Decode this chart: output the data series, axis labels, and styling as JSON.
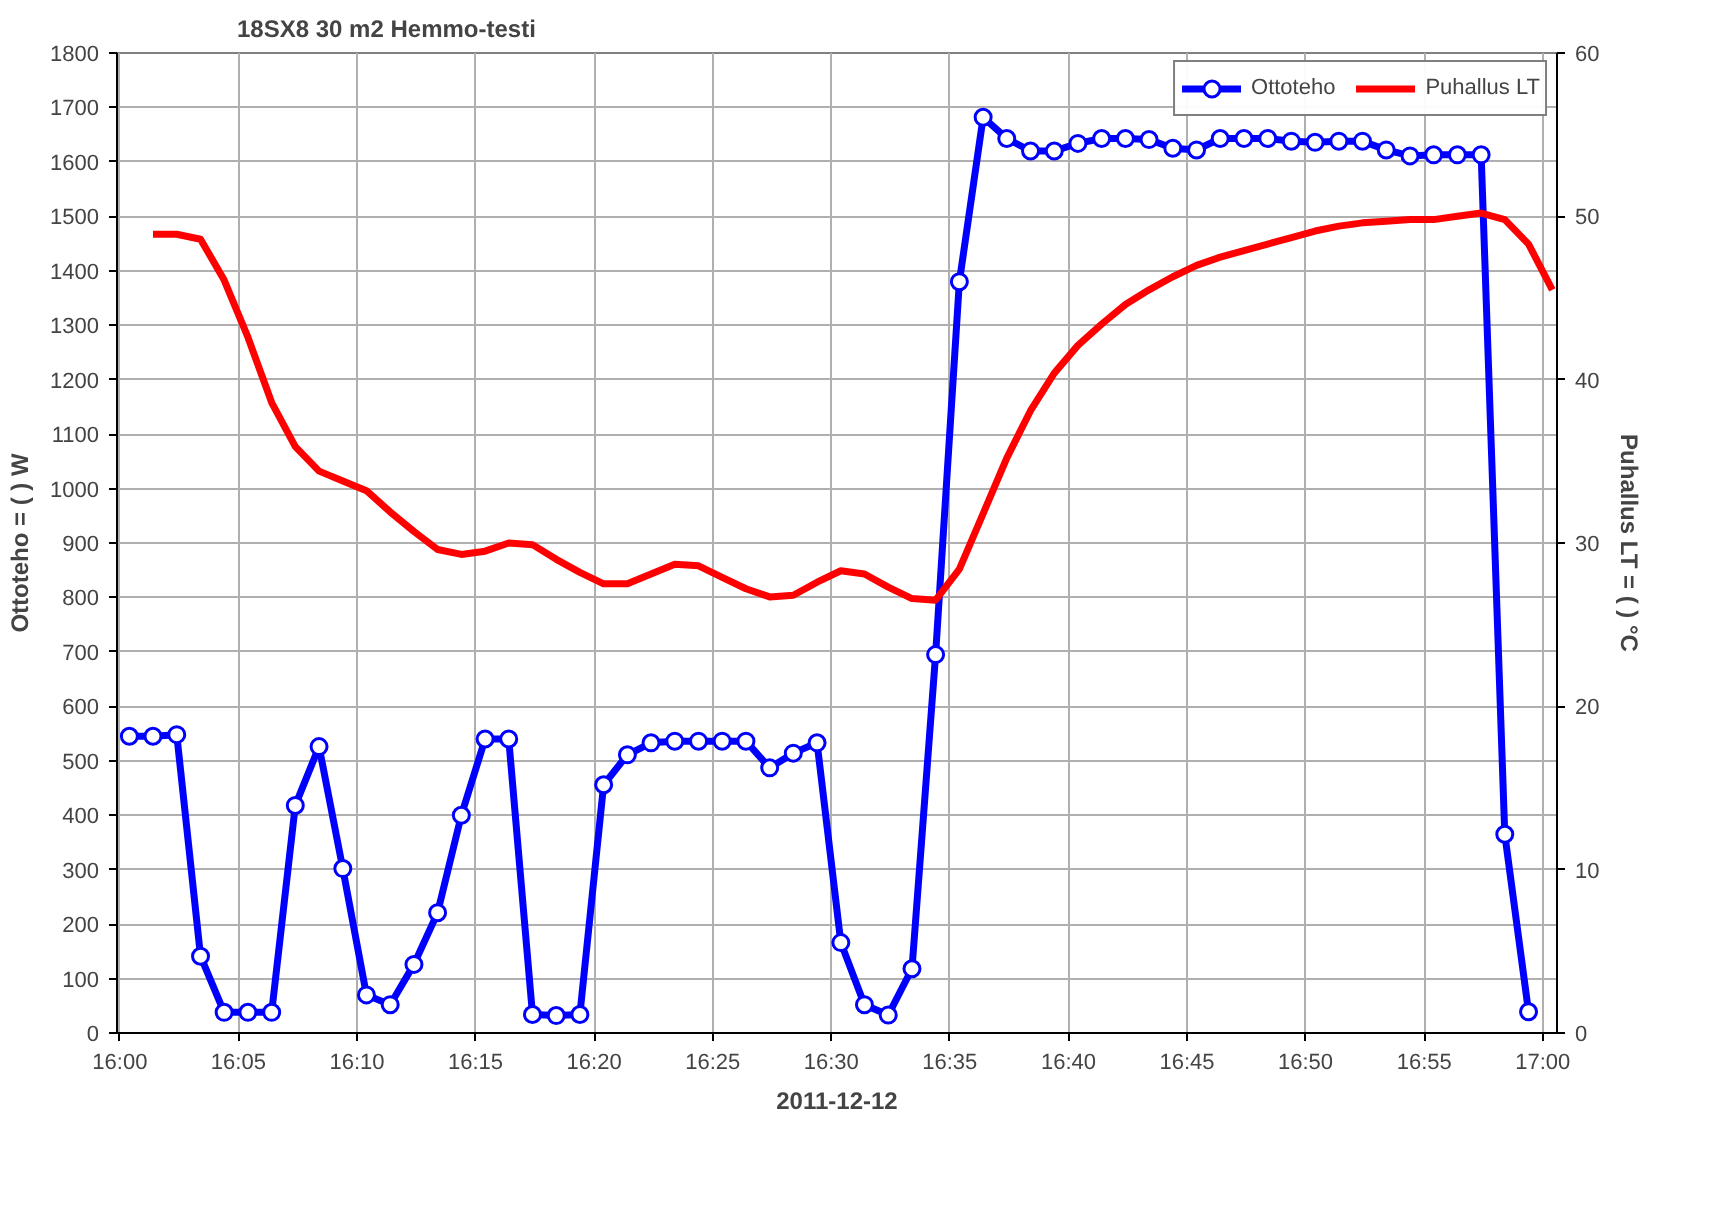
{
  "chart_data": {
    "type": "line",
    "title": "18SX8 30 m2 Hemmo-testi",
    "xlabel": "2011-12-12",
    "ylabel": "Ottoteho = ( ) W",
    "y2label": "Puhallus LT = ( ) °C",
    "xlim": [
      15.998,
      17.01
    ],
    "xticks": [
      {
        "value": 16,
        "label": "16:00"
      },
      {
        "value": 16.0833,
        "label": "16:05"
      },
      {
        "value": 16.1667,
        "label": "16:10"
      },
      {
        "value": 16.25,
        "label": "16:15"
      },
      {
        "value": 16.3333,
        "label": "16:20"
      },
      {
        "value": 16.4167,
        "label": "16:25"
      },
      {
        "value": 16.5,
        "label": "16:30"
      },
      {
        "value": 16.5833,
        "label": "16:35"
      },
      {
        "value": 16.6667,
        "label": "16:40"
      },
      {
        "value": 16.75,
        "label": "16:45"
      },
      {
        "value": 16.8333,
        "label": "16:50"
      },
      {
        "value": 16.9167,
        "label": "16:55"
      },
      {
        "value": 17,
        "label": "17:00"
      }
    ],
    "ylim": [
      0,
      1800
    ],
    "yticks": [
      0,
      100,
      200,
      300,
      400,
      500,
      600,
      700,
      800,
      900,
      1000,
      1100,
      1200,
      1300,
      1400,
      1500,
      1600,
      1700,
      1800
    ],
    "y2lim": [
      0,
      60
    ],
    "y2ticks": [
      0,
      10,
      20,
      30,
      40,
      50,
      60
    ],
    "grid": true,
    "legend": "top right",
    "series": [
      {
        "name": "Ottoteho",
        "color": "#0000ff",
        "marker": "circle",
        "x": [
          16.0067,
          16.0233,
          16.04,
          16.0567,
          16.0733,
          16.09,
          16.1067,
          16.1233,
          16.14,
          16.1567,
          16.1733,
          16.19,
          16.2067,
          16.2233,
          16.24,
          16.2567,
          16.2733,
          16.29,
          16.3067,
          16.3233,
          16.34,
          16.3567,
          16.3733,
          16.39,
          16.4067,
          16.4233,
          16.44,
          16.4567,
          16.4733,
          16.49,
          16.5067,
          16.5233,
          16.54,
          16.5567,
          16.5733,
          16.59,
          16.6067,
          16.6233,
          16.64,
          16.6567,
          16.6733,
          16.69,
          16.7067,
          16.7233,
          16.74,
          16.7567,
          16.7733,
          16.79,
          16.8067,
          16.8233,
          16.84,
          16.8567,
          16.8733,
          16.89,
          16.9067,
          16.9233,
          16.94,
          16.9567,
          16.9733,
          16.99
        ],
        "values": [
          545,
          545,
          548,
          141,
          38,
          38,
          38,
          418,
          526,
          302,
          70,
          52,
          126,
          221,
          400,
          540,
          540,
          34,
          32,
          34,
          456,
          511,
          533,
          536,
          536,
          536,
          536,
          487,
          514,
          533,
          166,
          52,
          33,
          118,
          695,
          1380,
          1682,
          1643,
          1620,
          1620,
          1634,
          1643,
          1643,
          1641,
          1625,
          1622,
          1643,
          1643,
          1643,
          1638,
          1636,
          1638,
          1638,
          1622,
          1611,
          1613,
          1613,
          1613,
          365,
          39
        ]
      },
      {
        "name": "Puhallus LT",
        "color": "#ff0000",
        "marker": "none",
        "axis": "y2",
        "x": [
          16.0233,
          16.04,
          16.0567,
          16.0733,
          16.09,
          16.1067,
          16.1233,
          16.14,
          16.1567,
          16.1733,
          16.19,
          16.2067,
          16.2233,
          16.24,
          16.2567,
          16.2733,
          16.29,
          16.3067,
          16.3233,
          16.34,
          16.3567,
          16.3733,
          16.39,
          16.4067,
          16.4233,
          16.44,
          16.4567,
          16.4733,
          16.49,
          16.5067,
          16.5233,
          16.54,
          16.5567,
          16.5733,
          16.59,
          16.6067,
          16.6233,
          16.64,
          16.6567,
          16.6733,
          16.69,
          16.7067,
          16.7233,
          16.74,
          16.7567,
          16.7733,
          16.79,
          16.8067,
          16.8233,
          16.84,
          16.8567,
          16.8733,
          16.89,
          16.9067,
          16.9233,
          16.94,
          16.9567,
          16.9733,
          16.99,
          17.0067
        ],
        "values": [
          48.9,
          48.9,
          48.6,
          46.1,
          42.6,
          38.6,
          35.9,
          34.4,
          33.8,
          33.2,
          31.9,
          30.7,
          29.6,
          29.3,
          29.5,
          30.0,
          29.9,
          29.0,
          28.2,
          27.5,
          27.5,
          28.1,
          28.7,
          28.6,
          27.9,
          27.2,
          26.7,
          26.8,
          27.6,
          28.3,
          28.1,
          27.3,
          26.6,
          26.5,
          28.4,
          31.8,
          35.2,
          38.1,
          40.4,
          42.1,
          43.4,
          44.6,
          45.5,
          46.3,
          47.0,
          47.5,
          47.9,
          48.3,
          48.7,
          49.1,
          49.4,
          49.6,
          49.7,
          49.8,
          49.8,
          50.0,
          50.2,
          49.8,
          48.3,
          45.5
        ]
      }
    ]
  }
}
